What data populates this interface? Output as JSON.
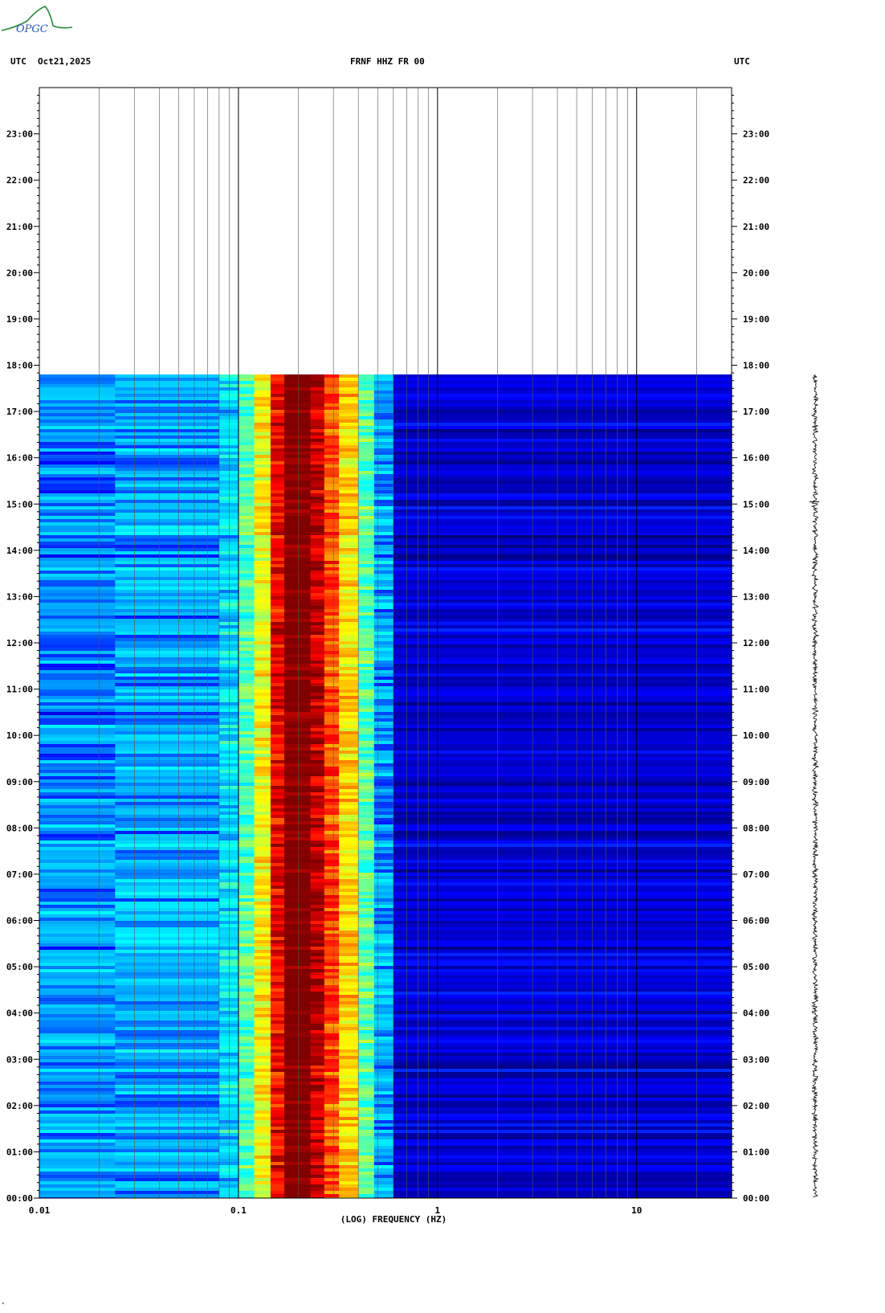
{
  "logo": {
    "text": "OPGC"
  },
  "header": {
    "left_tz": "UTC",
    "date": "Oct21,2025",
    "station": "FRNF HHZ FR 00",
    "right_tz": "UTC"
  },
  "chart_data": {
    "type": "heatmap",
    "title": "FRNF HHZ FR 00",
    "xlabel": "(LOG) FREQUENCY (HZ)",
    "x_scale": "log",
    "xlim": [
      0.01,
      30
    ],
    "x_tick_labels": [
      "0.01",
      "0.1",
      "1",
      "10"
    ],
    "x_tick_values": [
      0.01,
      0.1,
      1,
      10
    ],
    "ylim_hours": [
      0,
      24
    ],
    "y_tick_labels": [
      "00:00",
      "01:00",
      "02:00",
      "03:00",
      "04:00",
      "05:00",
      "06:00",
      "07:00",
      "08:00",
      "09:00",
      "10:00",
      "11:00",
      "12:00",
      "13:00",
      "14:00",
      "15:00",
      "16:00",
      "17:00",
      "18:00",
      "19:00",
      "20:00",
      "21:00",
      "22:00",
      "23:00"
    ],
    "data_end_hour": 17.8,
    "spectral_bands": [
      {
        "from_hz": 0.01,
        "to_hz": 0.024,
        "level": 0.24
      },
      {
        "from_hz": 0.024,
        "to_hz": 0.08,
        "level": 0.27
      },
      {
        "from_hz": 0.08,
        "to_hz": 0.1,
        "level": 0.33
      },
      {
        "from_hz": 0.1,
        "to_hz": 0.12,
        "level": 0.45
      },
      {
        "from_hz": 0.12,
        "to_hz": 0.145,
        "level": 0.62
      },
      {
        "from_hz": 0.145,
        "to_hz": 0.17,
        "level": 0.88
      },
      {
        "from_hz": 0.17,
        "to_hz": 0.23,
        "level": 1.0
      },
      {
        "from_hz": 0.23,
        "to_hz": 0.27,
        "level": 0.93
      },
      {
        "from_hz": 0.27,
        "to_hz": 0.32,
        "level": 0.8
      },
      {
        "from_hz": 0.32,
        "to_hz": 0.4,
        "level": 0.66
      },
      {
        "from_hz": 0.4,
        "to_hz": 0.48,
        "level": 0.46
      },
      {
        "from_hz": 0.48,
        "to_hz": 0.6,
        "level": 0.26
      },
      {
        "from_hz": 0.6,
        "to_hz": 30,
        "level": 0.08
      }
    ],
    "colormap": [
      "#000080",
      "#0000ff",
      "#00a0ff",
      "#00ffff",
      "#80ff80",
      "#ffff00",
      "#ff8000",
      "#ff0000",
      "#800000"
    ],
    "grid": true,
    "waveform_trace": true
  }
}
